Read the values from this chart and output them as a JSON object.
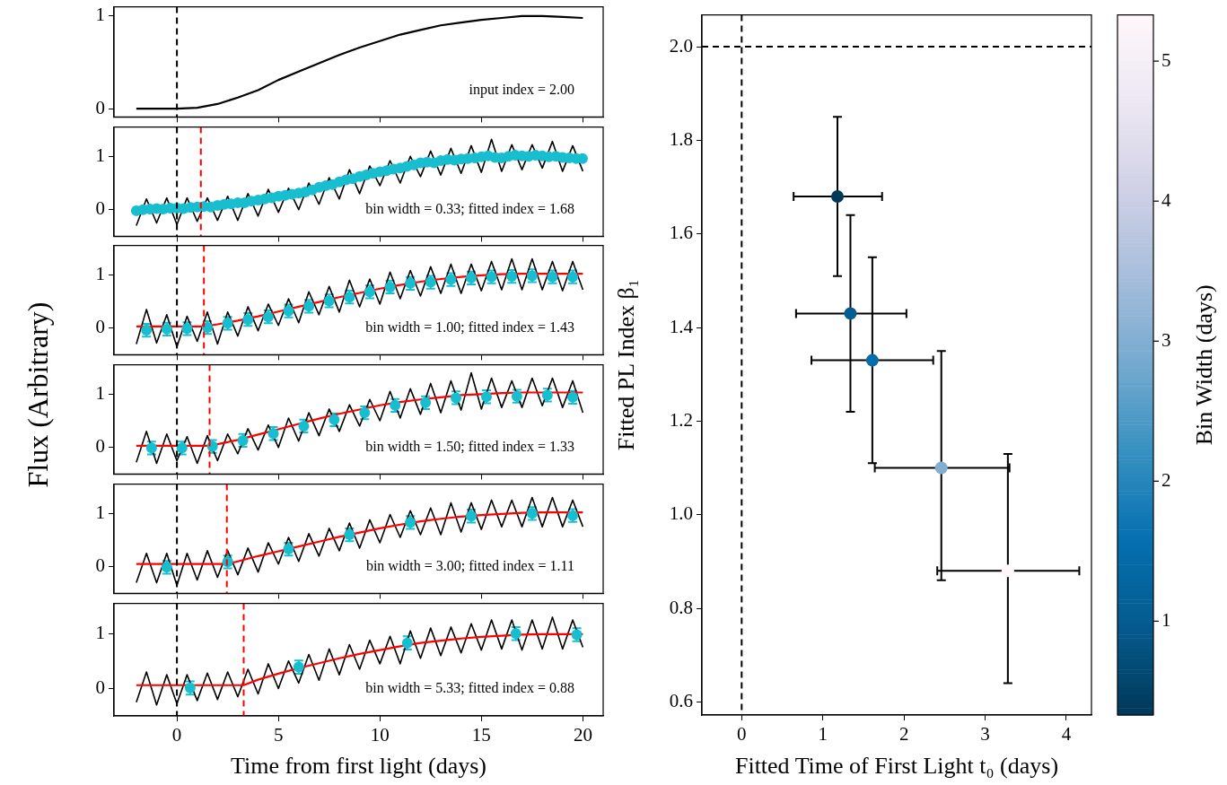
{
  "chart_data": [
    {
      "type": "line",
      "xlim": [
        -3.1,
        21.0
      ],
      "xticks": [
        0,
        5,
        10,
        15,
        20
      ],
      "ylim": [
        -0.09,
        1.1
      ],
      "yticks": [
        0,
        1
      ],
      "tick_labels": "y",
      "annotations": [
        "input index = 2.00"
      ],
      "ref_lines": [
        {
          "axis": "x",
          "value": 0,
          "color": "#000000",
          "line_style": "dashed"
        }
      ],
      "series": [
        {
          "color": "#000000",
          "x": [
            -2,
            0,
            1,
            2,
            3,
            4,
            5,
            6,
            7,
            8,
            9,
            10,
            11,
            12,
            13,
            14,
            15,
            16,
            17,
            18,
            19,
            20
          ],
          "values": [
            0,
            0,
            0.01,
            0.05,
            0.12,
            0.2,
            0.31,
            0.4,
            0.49,
            0.58,
            0.66,
            0.73,
            0.8,
            0.85,
            0.9,
            0.93,
            0.96,
            0.98,
            1.0,
            1.0,
            0.99,
            0.98
          ]
        }
      ]
    },
    {
      "type": "line",
      "xlim": [
        -3.1,
        21.0
      ],
      "xticks": [
        0,
        5,
        10,
        15,
        20
      ],
      "ylim": [
        -0.5,
        1.55
      ],
      "yticks": [
        0,
        1
      ],
      "tick_labels": "y",
      "annotations": [
        "bin width = 0.33; fitted index = 1.68"
      ],
      "ref_lines": [
        {
          "axis": "x",
          "value": 0,
          "color": "#000000",
          "line_style": "dashed"
        },
        {
          "axis": "x",
          "value": 1.18,
          "color": "#ff0000",
          "line_style": "dashed"
        }
      ],
      "series": [
        {
          "color": "#000000",
          "x": [
            -2,
            -1.5,
            -1,
            -0.5,
            0,
            0.5,
            1,
            1.5,
            2,
            2.5,
            3,
            3.5,
            4,
            4.5,
            5,
            5.5,
            6,
            6.5,
            7,
            7.5,
            8,
            8.5,
            9,
            9.5,
            10,
            10.5,
            11,
            11.5,
            12,
            12.5,
            13,
            13.5,
            14,
            14.5,
            15,
            15.5,
            16,
            16.5,
            17,
            17.5,
            18,
            18.5,
            19,
            19.5,
            20
          ],
          "values": [
            -0.3,
            0.2,
            -0.25,
            0.22,
            -0.28,
            0.22,
            -0.22,
            0.22,
            -0.2,
            0.25,
            -0.2,
            0.3,
            -0.12,
            0.38,
            -0.05,
            0.4,
            0.0,
            0.5,
            0.1,
            0.6,
            0.2,
            0.75,
            0.3,
            0.82,
            0.45,
            0.92,
            0.5,
            1.0,
            0.62,
            1.1,
            0.65,
            1.15,
            0.68,
            1.2,
            0.7,
            1.32,
            0.72,
            1.22,
            0.75,
            1.22,
            0.78,
            1.28,
            0.72,
            1.2,
            0.72
          ]
        },
        {
          "type": "scatter",
          "marker": "circle",
          "color": "#17becf",
          "x": [
            -2,
            -1.67,
            -1.33,
            -1,
            -0.67,
            -0.33,
            0,
            0.33,
            0.67,
            1,
            1.33,
            1.67,
            2,
            2.33,
            2.67,
            3,
            3.33,
            3.67,
            4,
            4.33,
            4.67,
            5,
            5.33,
            5.67,
            6,
            6.33,
            6.67,
            7,
            7.33,
            7.67,
            8,
            8.33,
            8.67,
            9,
            9.33,
            9.67,
            10,
            10.33,
            10.67,
            11,
            11.33,
            11.67,
            12,
            12.33,
            12.67,
            13,
            13.33,
            13.67,
            14,
            14.33,
            14.67,
            15,
            15.33,
            15.67,
            16,
            16.33,
            16.67,
            17,
            17.33,
            17.67,
            18,
            18.33,
            18.67,
            19,
            19.33,
            19.67,
            19.98
          ],
          "values": [
            -0.02,
            0,
            0.01,
            0.02,
            0.01,
            0.03,
            0.03,
            0.02,
            0.04,
            0.05,
            0.06,
            0.05,
            0.08,
            0.1,
            0.11,
            0.13,
            0.13,
            0.16,
            0.18,
            0.2,
            0.22,
            0.25,
            0.27,
            0.29,
            0.31,
            0.33,
            0.37,
            0.42,
            0.45,
            0.47,
            0.52,
            0.56,
            0.58,
            0.62,
            0.65,
            0.68,
            0.71,
            0.73,
            0.76,
            0.78,
            0.81,
            0.84,
            0.88,
            0.89,
            0.88,
            0.92,
            0.94,
            0.93,
            0.95,
            0.96,
            0.97,
            0.99,
            1.01,
            0.98,
            0.97,
            1.0,
            1.02,
            1.01,
            1.0,
            1.02,
            1.01,
            0.99,
            1.0,
            0.98,
            0.97,
            0.96,
            0.96
          ]
        }
      ]
    },
    {
      "type": "line",
      "xlim": [
        -3.1,
        21.0
      ],
      "xticks": [
        0,
        5,
        10,
        15,
        20
      ],
      "ylim": [
        -0.5,
        1.55
      ],
      "yticks": [
        0,
        1
      ],
      "tick_labels": "y",
      "annotations": [
        "bin width = 1.00; fitted index = 1.43"
      ],
      "ref_lines": [
        {
          "axis": "x",
          "value": 0,
          "color": "#000000",
          "line_style": "dashed"
        },
        {
          "axis": "x",
          "value": 1.33,
          "color": "#ff0000",
          "line_style": "dashed"
        }
      ],
      "series": [
        {
          "color": "#000000",
          "x": [
            -2,
            -1.5,
            -1,
            -0.5,
            0,
            0.5,
            1,
            1.5,
            2,
            2.5,
            3,
            3.5,
            4,
            4.5,
            5,
            5.5,
            6,
            6.5,
            7,
            7.5,
            8,
            8.5,
            9,
            9.5,
            10,
            10.5,
            11,
            11.5,
            12,
            12.5,
            13,
            13.5,
            14,
            14.5,
            15,
            15.5,
            16,
            16.5,
            17,
            17.5,
            18,
            18.5,
            19,
            19.5,
            20
          ],
          "values": [
            -0.3,
            0.35,
            -0.28,
            0.25,
            -0.35,
            0.22,
            -0.25,
            0.3,
            -0.3,
            0.3,
            -0.15,
            0.4,
            -0.05,
            0.45,
            0.05,
            0.55,
            0.1,
            0.68,
            0.25,
            0.78,
            0.3,
            0.9,
            0.4,
            0.92,
            0.45,
            1.05,
            0.55,
            1.08,
            0.6,
            1.15,
            0.65,
            1.2,
            0.65,
            1.2,
            0.7,
            1.25,
            0.72,
            1.3,
            0.72,
            1.3,
            0.72,
            1.25,
            0.7,
            1.25,
            0.72
          ]
        },
        {
          "color": "#ff0000",
          "x": [
            -2,
            1.33,
            2,
            3,
            4,
            5,
            6,
            7,
            8,
            9,
            10,
            11,
            12,
            13,
            14,
            15,
            16,
            17,
            18,
            19,
            20
          ],
          "values": [
            0.03,
            0.03,
            0.07,
            0.14,
            0.22,
            0.31,
            0.4,
            0.49,
            0.58,
            0.66,
            0.74,
            0.81,
            0.87,
            0.92,
            0.96,
            0.99,
            1.01,
            1.02,
            1.02,
            1.02,
            1.02
          ]
        },
        {
          "type": "scatter",
          "marker": "circle",
          "color": "#17becf",
          "x": [
            -1.5,
            -0.5,
            0.5,
            1.5,
            2.5,
            3.5,
            4.5,
            5.5,
            6.5,
            7.5,
            8.5,
            9.5,
            10.5,
            11.5,
            12.5,
            13.5,
            14.5,
            15.5,
            16.5,
            17.5,
            18.5,
            19.5
          ],
          "values": [
            -0.04,
            -0.02,
            -0.01,
            0.01,
            0.09,
            0.16,
            0.21,
            0.32,
            0.41,
            0.51,
            0.58,
            0.68,
            0.77,
            0.84,
            0.86,
            0.91,
            0.94,
            0.96,
            0.97,
            0.98,
            0.96,
            0.96
          ],
          "errors": [
            0.12,
            0.12,
            0.12,
            0.12,
            0.12,
            0.12,
            0.12,
            0.12,
            0.12,
            0.12,
            0.12,
            0.12,
            0.12,
            0.12,
            0.12,
            0.12,
            0.12,
            0.12,
            0.12,
            0.12,
            0.12,
            0.12
          ]
        }
      ]
    },
    {
      "type": "line",
      "ylabel": "Flux (Arbitrary)",
      "xlim": [
        -3.1,
        21.0
      ],
      "xticks": [
        0,
        5,
        10,
        15,
        20
      ],
      "ylim": [
        -0.5,
        1.55
      ],
      "yticks": [
        0,
        1
      ],
      "tick_labels": "y",
      "annotations": [
        "bin width = 1.50; fitted index = 1.33"
      ],
      "ref_lines": [
        {
          "axis": "x",
          "value": 0,
          "color": "#000000",
          "line_style": "dashed"
        },
        {
          "axis": "x",
          "value": 1.61,
          "color": "#ff0000",
          "line_style": "dashed"
        }
      ],
      "series": [
        {
          "color": "#000000",
          "x": [
            -2,
            -1.5,
            -1,
            -0.5,
            0,
            0.5,
            1,
            1.5,
            2,
            2.5,
            3,
            3.5,
            4,
            4.5,
            5,
            5.5,
            6,
            6.5,
            7,
            7.5,
            8,
            8.5,
            9,
            9.5,
            10,
            10.5,
            11,
            11.5,
            12,
            12.5,
            13,
            13.5,
            14,
            14.5,
            15,
            15.5,
            16,
            16.5,
            17,
            17.5,
            18,
            18.5,
            19,
            19.5,
            20
          ],
          "values": [
            -0.28,
            0.3,
            -0.3,
            0.25,
            -0.25,
            0.2,
            -0.3,
            0.22,
            -0.25,
            0.25,
            -0.12,
            0.35,
            -0.05,
            0.42,
            0.0,
            0.55,
            0.12,
            0.65,
            0.22,
            0.72,
            0.3,
            0.8,
            0.4,
            0.9,
            0.5,
            1.05,
            0.55,
            1.1,
            0.62,
            1.2,
            0.65,
            1.25,
            0.7,
            1.4,
            0.72,
            1.3,
            0.75,
            1.25,
            0.75,
            1.3,
            0.78,
            1.3,
            0.75,
            1.25,
            0.65
          ]
        },
        {
          "color": "#ff0000",
          "x": [
            -2,
            1.61,
            2,
            3,
            4,
            5,
            6,
            7,
            8,
            9,
            10,
            11,
            12,
            13,
            14,
            15,
            16,
            17,
            18,
            19,
            20
          ],
          "values": [
            0.03,
            0.03,
            0.06,
            0.14,
            0.24,
            0.34,
            0.44,
            0.54,
            0.63,
            0.71,
            0.79,
            0.85,
            0.9,
            0.94,
            0.98,
            1.0,
            1.02,
            1.03,
            1.03,
            1.03,
            1.03
          ]
        },
        {
          "type": "scatter",
          "marker": "circle",
          "color": "#17becf",
          "x": [
            -1.25,
            0.25,
            1.75,
            3.25,
            4.75,
            6.25,
            7.75,
            9.25,
            10.75,
            12.25,
            13.75,
            15.25,
            16.75,
            18.25,
            19.5
          ],
          "values": [
            -0.01,
            -0.01,
            0.02,
            0.13,
            0.26,
            0.4,
            0.52,
            0.65,
            0.79,
            0.84,
            0.93,
            0.95,
            0.96,
            0.98,
            0.94
          ],
          "errors": [
            0.12,
            0.12,
            0.12,
            0.12,
            0.12,
            0.12,
            0.12,
            0.12,
            0.12,
            0.12,
            0.12,
            0.12,
            0.12,
            0.12,
            0.12
          ]
        }
      ]
    },
    {
      "type": "line",
      "xlim": [
        -3.1,
        21.0
      ],
      "xticks": [
        0,
        5,
        10,
        15,
        20
      ],
      "ylim": [
        -0.5,
        1.55
      ],
      "yticks": [
        0,
        1
      ],
      "tick_labels": "y",
      "annotations": [
        "bin width = 3.00; fitted index = 1.11"
      ],
      "ref_lines": [
        {
          "axis": "x",
          "value": 0,
          "color": "#000000",
          "line_style": "dashed"
        },
        {
          "axis": "x",
          "value": 2.46,
          "color": "#ff0000",
          "line_style": "dashed"
        }
      ],
      "series": [
        {
          "color": "#000000",
          "x": [
            -2,
            -1.5,
            -1,
            -0.5,
            0,
            0.5,
            1,
            1.5,
            2,
            2.5,
            3,
            3.5,
            4,
            4.5,
            5,
            5.5,
            6,
            6.5,
            7,
            7.5,
            8,
            8.5,
            9,
            9.5,
            10,
            10.5,
            11,
            11.5,
            12,
            12.5,
            13,
            13.5,
            14,
            14.5,
            15,
            15.5,
            16,
            16.5,
            17,
            17.5,
            18,
            18.5,
            19,
            19.5,
            20
          ],
          "values": [
            -0.3,
            0.25,
            -0.3,
            0.25,
            -0.35,
            0.25,
            -0.25,
            0.3,
            -0.2,
            0.3,
            -0.15,
            0.35,
            -0.1,
            0.45,
            0.05,
            0.55,
            0.1,
            0.62,
            0.2,
            0.72,
            0.3,
            0.82,
            0.35,
            0.88,
            0.45,
            0.98,
            0.55,
            1.05,
            0.6,
            1.1,
            0.6,
            1.2,
            0.65,
            1.2,
            0.7,
            1.25,
            0.75,
            1.25,
            0.75,
            1.3,
            0.75,
            1.3,
            0.75,
            1.25,
            0.75
          ]
        },
        {
          "color": "#ff0000",
          "x": [
            -2,
            2.46,
            3,
            4,
            5,
            6,
            7,
            8,
            9,
            10,
            11,
            12,
            13,
            14,
            15,
            16,
            17,
            18,
            19,
            20
          ],
          "values": [
            0.05,
            0.05,
            0.1,
            0.2,
            0.29,
            0.38,
            0.47,
            0.56,
            0.64,
            0.72,
            0.79,
            0.85,
            0.9,
            0.94,
            0.97,
            0.99,
            1.01,
            1.02,
            1.02,
            1.02
          ]
        },
        {
          "type": "scatter",
          "marker": "circle",
          "color": "#17becf",
          "x": [
            -0.5,
            2.5,
            5.5,
            8.5,
            11.5,
            14.5,
            17.5,
            19.5
          ],
          "values": [
            -0.01,
            0.09,
            0.33,
            0.6,
            0.83,
            0.95,
            1.0,
            0.96
          ],
          "errors": [
            0.12,
            0.12,
            0.12,
            0.12,
            0.12,
            0.12,
            0.12,
            0.12
          ]
        }
      ]
    },
    {
      "type": "line",
      "xlabel": "Time from first light (days)",
      "xlim": [
        -3.1,
        21.0
      ],
      "xticks": [
        0,
        5,
        10,
        15,
        20
      ],
      "ylim": [
        -0.5,
        1.55
      ],
      "yticks": [
        0,
        1
      ],
      "annotations": [
        "bin width = 5.33; fitted index = 0.88"
      ],
      "ref_lines": [
        {
          "axis": "x",
          "value": 0,
          "color": "#000000",
          "line_style": "dashed"
        },
        {
          "axis": "x",
          "value": 3.29,
          "color": "#ff0000",
          "line_style": "dashed"
        }
      ],
      "series": [
        {
          "color": "#000000",
          "x": [
            -2,
            -1.5,
            -1,
            -0.5,
            0,
            0.5,
            1,
            1.5,
            2,
            2.5,
            3,
            3.5,
            4,
            4.5,
            5,
            5.5,
            6,
            6.5,
            7,
            7.5,
            8,
            8.5,
            9,
            9.5,
            10,
            10.5,
            11,
            11.5,
            12,
            12.5,
            13,
            13.5,
            14,
            14.5,
            15,
            15.5,
            16,
            16.5,
            17,
            17.5,
            18,
            18.5,
            19,
            19.5,
            20
          ],
          "values": [
            -0.25,
            0.3,
            -0.3,
            0.25,
            -0.28,
            0.25,
            -0.22,
            0.28,
            -0.2,
            0.3,
            -0.15,
            0.35,
            -0.1,
            0.45,
            0.0,
            0.5,
            0.1,
            0.62,
            0.15,
            0.72,
            0.25,
            0.8,
            0.35,
            0.88,
            0.45,
            0.95,
            0.45,
            1.05,
            0.55,
            1.1,
            0.6,
            1.12,
            0.65,
            1.18,
            0.7,
            1.25,
            0.72,
            1.25,
            0.7,
            1.25,
            0.72,
            1.3,
            0.72,
            1.25,
            0.75
          ]
        },
        {
          "color": "#ff0000",
          "x": [
            -2,
            3.29,
            4,
            5,
            6,
            7,
            8,
            9,
            10,
            11,
            12,
            13,
            14,
            15,
            16,
            17,
            18,
            19,
            20
          ],
          "values": [
            0.06,
            0.06,
            0.16,
            0.27,
            0.37,
            0.46,
            0.55,
            0.63,
            0.7,
            0.77,
            0.83,
            0.87,
            0.91,
            0.94,
            0.96,
            0.98,
            0.99,
            0.99,
            0.99
          ]
        },
        {
          "type": "scatter",
          "marker": "circle",
          "color": "#17becf",
          "x": [
            0.65,
            6.0,
            11.35,
            16.7,
            19.7
          ],
          "values": [
            0.01,
            0.39,
            0.83,
            1.0,
            0.98
          ],
          "errors": [
            0.12,
            0.12,
            0.12,
            0.12,
            0.12
          ]
        }
      ]
    },
    {
      "type": "scatter",
      "xlabel": "Fitted Time of First Light t₀ (days)",
      "ylabel": "Fitted PL Index β₁",
      "clabel": "Bin Width (days)",
      "xlim": [
        -0.49,
        4.31
      ],
      "xticks": [
        0,
        1,
        2,
        3,
        4
      ],
      "ylim": [
        0.572,
        2.068
      ],
      "yticks": [
        0.6,
        0.8,
        {
          "value": 1,
          "label": "1.0"
        },
        1.2,
        1.4,
        1.6,
        1.8,
        {
          "value": 2,
          "label": "2.0"
        }
      ],
      "clim": [
        0.33,
        5.33
      ],
      "cticks": [
        1,
        2,
        3,
        4,
        5
      ],
      "ref_lines": [
        {
          "axis": "x",
          "value": 0,
          "color": "#000000",
          "line_style": "dashed"
        },
        {
          "axis": "y",
          "value": 2.0,
          "color": "#000000",
          "line_style": "dashed"
        }
      ],
      "series": [
        {
          "marker": "circle",
          "x": [
            1.18,
            1.34,
            1.61,
            2.46,
            3.28
          ],
          "values": [
            1.68,
            1.43,
            1.33,
            1.1,
            0.88
          ],
          "cvalues": [
            0.33,
            1.0,
            1.5,
            3.0,
            5.33
          ],
          "errors": [
            [
              1.51,
              1.85
            ],
            [
              1.22,
              1.64
            ],
            [
              1.11,
              1.55
            ],
            [
              0.86,
              1.35
            ],
            [
              0.64,
              1.13
            ]
          ],
          "xerrors": [
            [
              0.64,
              1.73
            ],
            [
              0.67,
              2.03
            ],
            [
              0.86,
              2.36
            ],
            [
              1.64,
              3.3
            ],
            [
              2.41,
              4.16
            ]
          ]
        }
      ]
    }
  ]
}
